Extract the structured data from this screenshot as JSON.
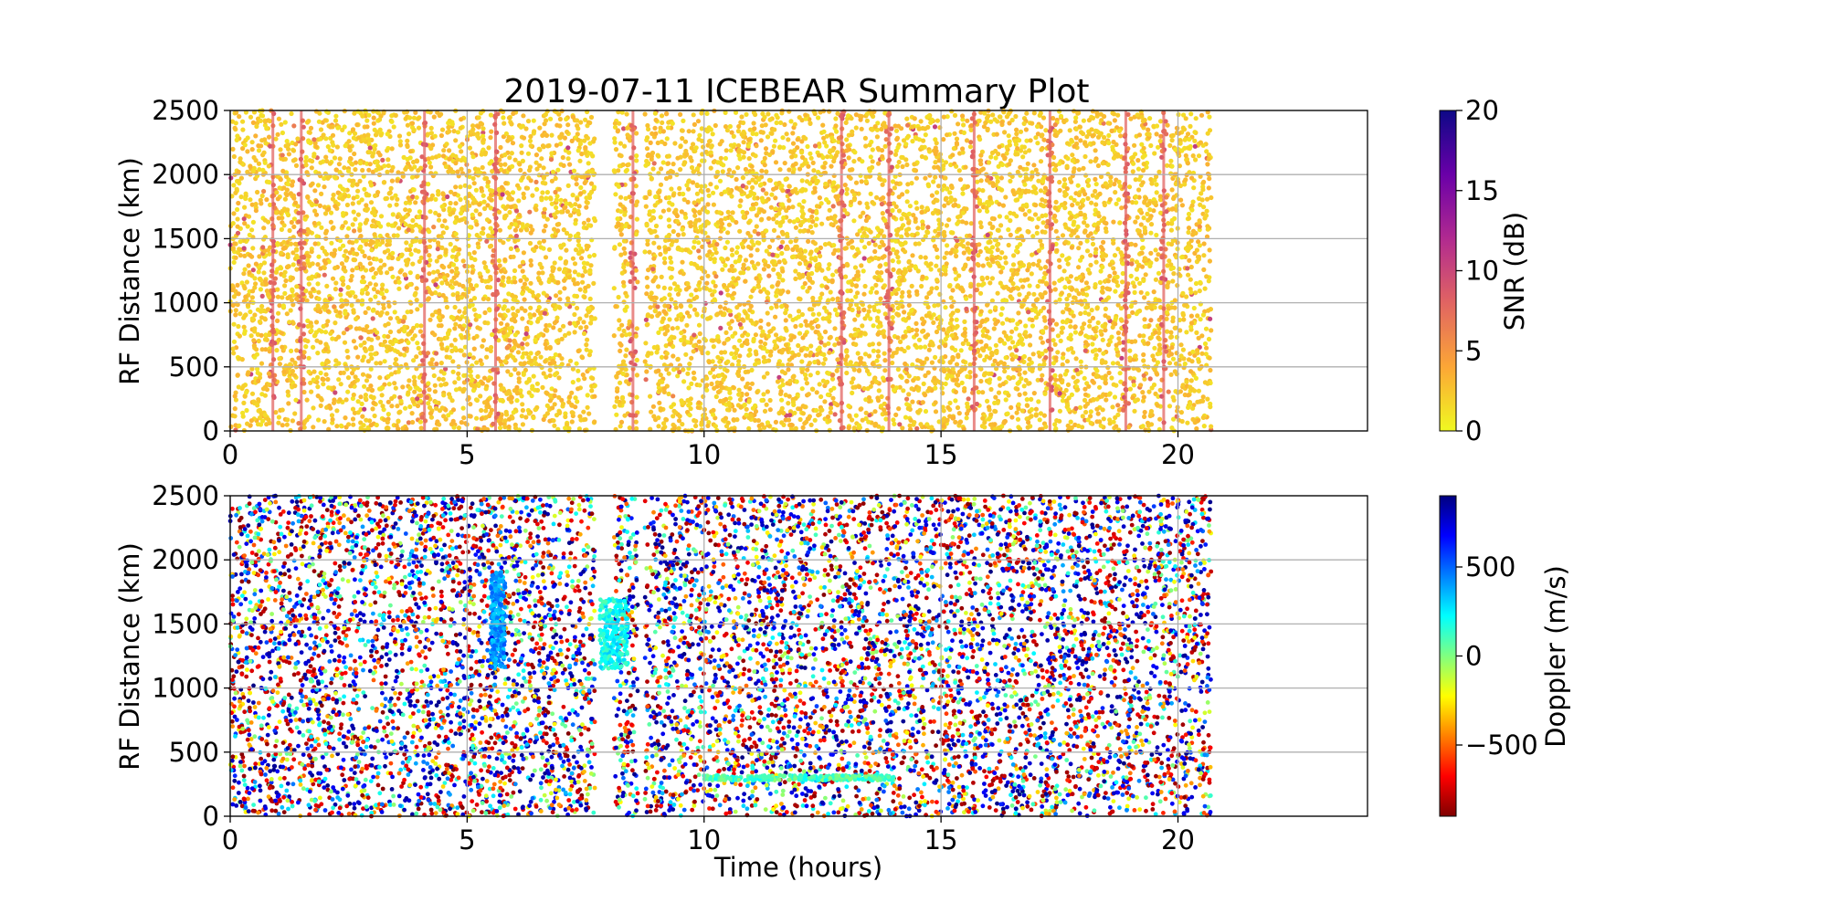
{
  "chart_data": [
    {
      "type": "scatter",
      "title": "2019-07-11 ICEBEAR Summary Plot",
      "xlabel": "",
      "ylabel": "RF Distance (km)",
      "xlim": [
        0,
        24
      ],
      "ylim": [
        0,
        2500
      ],
      "x_ticks": [
        "0",
        "5",
        "10",
        "15",
        "20"
      ],
      "y_ticks": [
        "0",
        "500",
        "1000",
        "1500",
        "2000",
        "2500"
      ],
      "grid": true,
      "colorbar": {
        "label": "SNR (dB)",
        "range": [
          0,
          20
        ],
        "ticks": [
          "0",
          "5",
          "10",
          "15",
          "20"
        ],
        "colormap": "plasma_r",
        "colors": [
          "#f0f921",
          "#fca636",
          "#e16462",
          "#b12a90",
          "#6a00a8",
          "#0d0887"
        ]
      },
      "data_extent_hours": [
        0,
        20.7
      ],
      "data_gaps_hours": [
        [
          7.7,
          8.1
        ],
        [
          8.6,
          8.75
        ]
      ],
      "enhanced_stripes_hours": [
        0.9,
        1.5,
        4.1,
        5.6,
        8.5,
        12.9,
        13.9,
        15.7,
        17.3,
        18.9,
        19.7
      ],
      "snr_stripe_dB": 8,
      "snr_background_dB": 1
    },
    {
      "type": "scatter",
      "title": "",
      "xlabel": "Time (hours)",
      "ylabel": "RF Distance (km)",
      "xlim": [
        0,
        24
      ],
      "ylim": [
        0,
        2500
      ],
      "x_ticks": [
        "0",
        "5",
        "10",
        "15",
        "20"
      ],
      "y_ticks": [
        "0",
        "500",
        "1000",
        "1500",
        "2000",
        "2500"
      ],
      "grid": true,
      "colorbar": {
        "label": "Doppler (m/s)",
        "range": [
          -900,
          900
        ],
        "ticks": [
          "−500",
          "0",
          "500"
        ],
        "tick_values": [
          -500,
          0,
          500
        ],
        "colormap": "jet_r",
        "colors": [
          "#800000",
          "#ff0000",
          "#ff8000",
          "#ffff00",
          "#80ff80",
          "#00ffff",
          "#0080ff",
          "#0000ff",
          "#000080"
        ]
      },
      "data_extent_hours": [
        0,
        20.7
      ],
      "data_gaps_hours": [
        [
          7.7,
          8.1
        ],
        [
          8.6,
          8.75
        ]
      ],
      "near_zero_features": [
        {
          "time_hours": [
            5.5,
            5.8
          ],
          "range_km": [
            1150,
            1900
          ],
          "doppler_ms": 400
        },
        {
          "time_hours": [
            7.8,
            8.4
          ],
          "range_km": [
            1150,
            1700
          ],
          "doppler_ms": 200
        },
        {
          "time_hours": [
            10.0,
            14.0
          ],
          "range_km": [
            280,
            320
          ],
          "doppler_ms": 100
        }
      ]
    }
  ]
}
